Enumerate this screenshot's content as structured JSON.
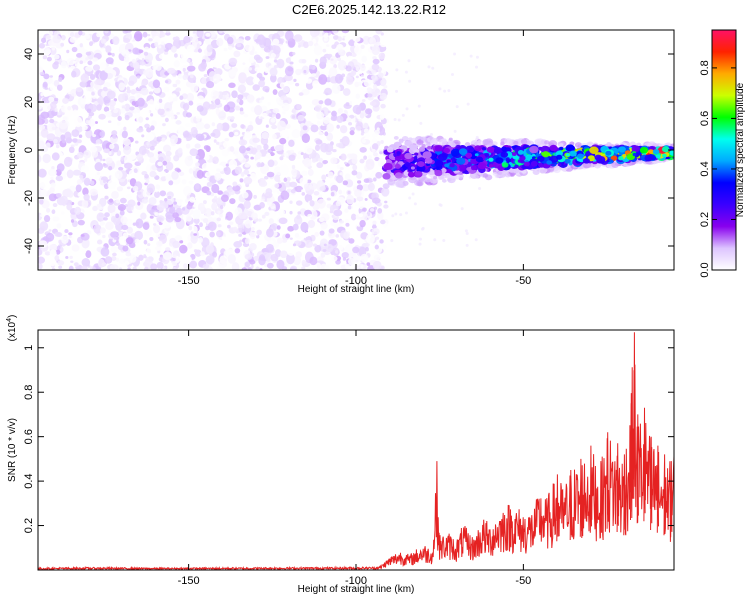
{
  "title": "C2E6.2025.142.13.22.R12",
  "colors": {
    "background": "#ffffff",
    "snr_line": "#e52222",
    "axis": "#000000"
  },
  "chart_data": [
    {
      "type": "heatmap",
      "xlabel": "Height of straight line (km)",
      "ylabel": "Frequency (Hz)",
      "xlim": [
        -195,
        -5
      ],
      "ylim": [
        -50,
        50
      ],
      "xticks": [
        -150,
        -100,
        -50
      ],
      "yticks": [
        -40,
        -20,
        0,
        20,
        40
      ],
      "colorbar": {
        "label": "Normalized spectral amplitude",
        "range": [
          0,
          0.95
        ],
        "ticks": [
          0.0,
          0.2,
          0.4,
          0.6,
          0.8
        ],
        "colormap": [
          "#ffffff",
          "#ddc4ff",
          "#8800ee",
          "#3a00ff",
          "#0000ff",
          "#00aaff",
          "#00ffee",
          "#00ff00",
          "#ccff00",
          "#ffaa00",
          "#ff2200",
          "#ff1166"
        ]
      },
      "regions": [
        {
          "description": "noise",
          "x_range": [
            -195,
            -91
          ],
          "frequency_range": [
            -50,
            50
          ],
          "amplitude_range": [
            0.0,
            0.1
          ]
        },
        {
          "description": "signal band",
          "x_range": [
            -91,
            -5
          ],
          "frequency_center_start": -5,
          "frequency_center_end": -1,
          "half_width_start": 7,
          "half_width_end": 2,
          "amplitude_start": 0.25,
          "amplitude_end": 0.9
        }
      ]
    },
    {
      "type": "line",
      "xlabel": "Height of straight line (km)",
      "ylabel": "SNR (10 * v/v)",
      "y_scale_label": "(x10",
      "y_scale_exponent": "4",
      "y_scale_suffix": ")",
      "xlim": [
        -195,
        -5
      ],
      "ylim": [
        0,
        1.08
      ],
      "xticks": [
        -150,
        -100,
        -50
      ],
      "yticks": [
        0.2,
        0.4,
        0.6,
        0.8,
        1.0
      ],
      "series": [
        {
          "points": [
            [
              -195,
              0.01
            ],
            [
              -180,
              0.012
            ],
            [
              -160,
              0.01
            ],
            [
              -140,
              0.011
            ],
            [
              -120,
              0.012
            ],
            [
              -100,
              0.013
            ],
            [
              -93,
              0.015
            ],
            [
              -90,
              0.06
            ],
            [
              -87,
              0.09
            ],
            [
              -84,
              0.07
            ],
            [
              -80,
              0.12
            ],
            [
              -77,
              0.1
            ],
            [
              -76,
              0.49
            ],
            [
              -75,
              0.16
            ],
            [
              -72,
              0.17
            ],
            [
              -70,
              0.14
            ],
            [
              -68,
              0.21
            ],
            [
              -65,
              0.15
            ],
            [
              -62,
              0.24
            ],
            [
              -60,
              0.21
            ],
            [
              -58,
              0.26
            ],
            [
              -55,
              0.31
            ],
            [
              -52,
              0.29
            ],
            [
              -50,
              0.27
            ],
            [
              -47,
              0.28
            ],
            [
              -45,
              0.37
            ],
            [
              -43,
              0.33
            ],
            [
              -40,
              0.43
            ],
            [
              -38,
              0.38
            ],
            [
              -36,
              0.45
            ],
            [
              -33,
              0.5
            ],
            [
              -30,
              0.56
            ],
            [
              -27,
              0.48
            ],
            [
              -25,
              0.62
            ],
            [
              -22,
              0.57
            ],
            [
              -20,
              0.52
            ],
            [
              -18,
              0.75
            ],
            [
              -17,
              1.07
            ],
            [
              -16,
              0.7
            ],
            [
              -14,
              0.73
            ],
            [
              -12,
              0.6
            ],
            [
              -10,
              0.56
            ],
            [
              -8,
              0.52
            ],
            [
              -6,
              0.49
            ],
            [
              -5,
              0.55
            ]
          ]
        }
      ]
    }
  ]
}
